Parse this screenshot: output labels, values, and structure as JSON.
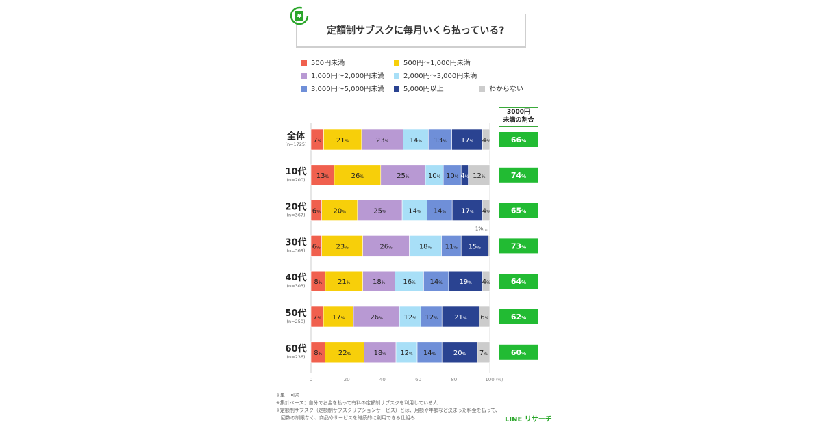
{
  "title": "定額制サブスクに毎月いくら払っている?",
  "legend": [
    {
      "label": "500円未満",
      "color": "#f0604e"
    },
    {
      "label": "500円〜1,000円未満",
      "color": "#f7cf0a"
    },
    {
      "label": "1,000円〜2,000円未満",
      "color": "#b899d3"
    },
    {
      "label": "2,000円〜3,000円未満",
      "color": "#a8dff7"
    },
    {
      "label": "3,000円〜5,000円未満",
      "color": "#6f8fd8"
    },
    {
      "label": "5,000円以上",
      "color": "#2a4391"
    },
    {
      "label": "わからない",
      "color": "#cccccc"
    }
  ],
  "ratio_header": {
    "line1": "3000円",
    "line2": "未満の割合"
  },
  "chart_data": {
    "type": "bar",
    "orientation": "horizontal",
    "stacked": true,
    "unit": "%",
    "categories": [
      "全体",
      "10代",
      "20代",
      "30代",
      "40代",
      "50代",
      "60代"
    ],
    "sample_sizes": [
      "(n=1725)",
      "(n=200)",
      "(n=367)",
      "(n=369)",
      "(n=303)",
      "(n=250)",
      "(n=236)"
    ],
    "series": [
      {
        "name": "500円未満",
        "values": [
          7,
          13,
          6,
          6,
          8,
          7,
          8
        ]
      },
      {
        "name": "500円〜1,000円未満",
        "values": [
          21,
          26,
          20,
          23,
          21,
          17,
          22
        ]
      },
      {
        "name": "1,000円〜2,000円未満",
        "values": [
          23,
          25,
          25,
          26,
          18,
          26,
          18
        ]
      },
      {
        "name": "2,000円〜3,000円未満",
        "values": [
          14,
          10,
          14,
          18,
          16,
          12,
          12
        ]
      },
      {
        "name": "3,000円〜5,000円未満",
        "values": [
          13,
          10,
          14,
          11,
          14,
          12,
          14
        ]
      },
      {
        "name": "5,000円以上",
        "values": [
          17,
          4,
          17,
          15,
          19,
          21,
          20
        ]
      },
      {
        "name": "わからない",
        "values": [
          4,
          12,
          4,
          1,
          4,
          6,
          7
        ]
      }
    ],
    "under_3000_ratio": [
      "66%",
      "74%",
      "65%",
      "73%",
      "64%",
      "62%",
      "60%"
    ],
    "ratio_color": "#22bb33",
    "callouts": [
      {
        "category": "30代",
        "series": "わからない",
        "text": "1%…"
      }
    ],
    "xlim": [
      0,
      100
    ],
    "xticks": [
      0,
      20,
      40,
      60,
      80,
      100
    ],
    "xunit": "(%)",
    "grid": false,
    "legend_position": "top"
  },
  "notes": [
    "※単一回答",
    "※集計ベース：自分でお金を払って有料の定額制サブスクを利用している人",
    "※定額制サブスク（定額制サブスクリプションサービス）とは、月額や年額など決まった料金を払って、",
    "　回数の制限なく、商品やサービスを継続的に利用できる仕組み"
  ],
  "logo": "LINE リサーチ"
}
